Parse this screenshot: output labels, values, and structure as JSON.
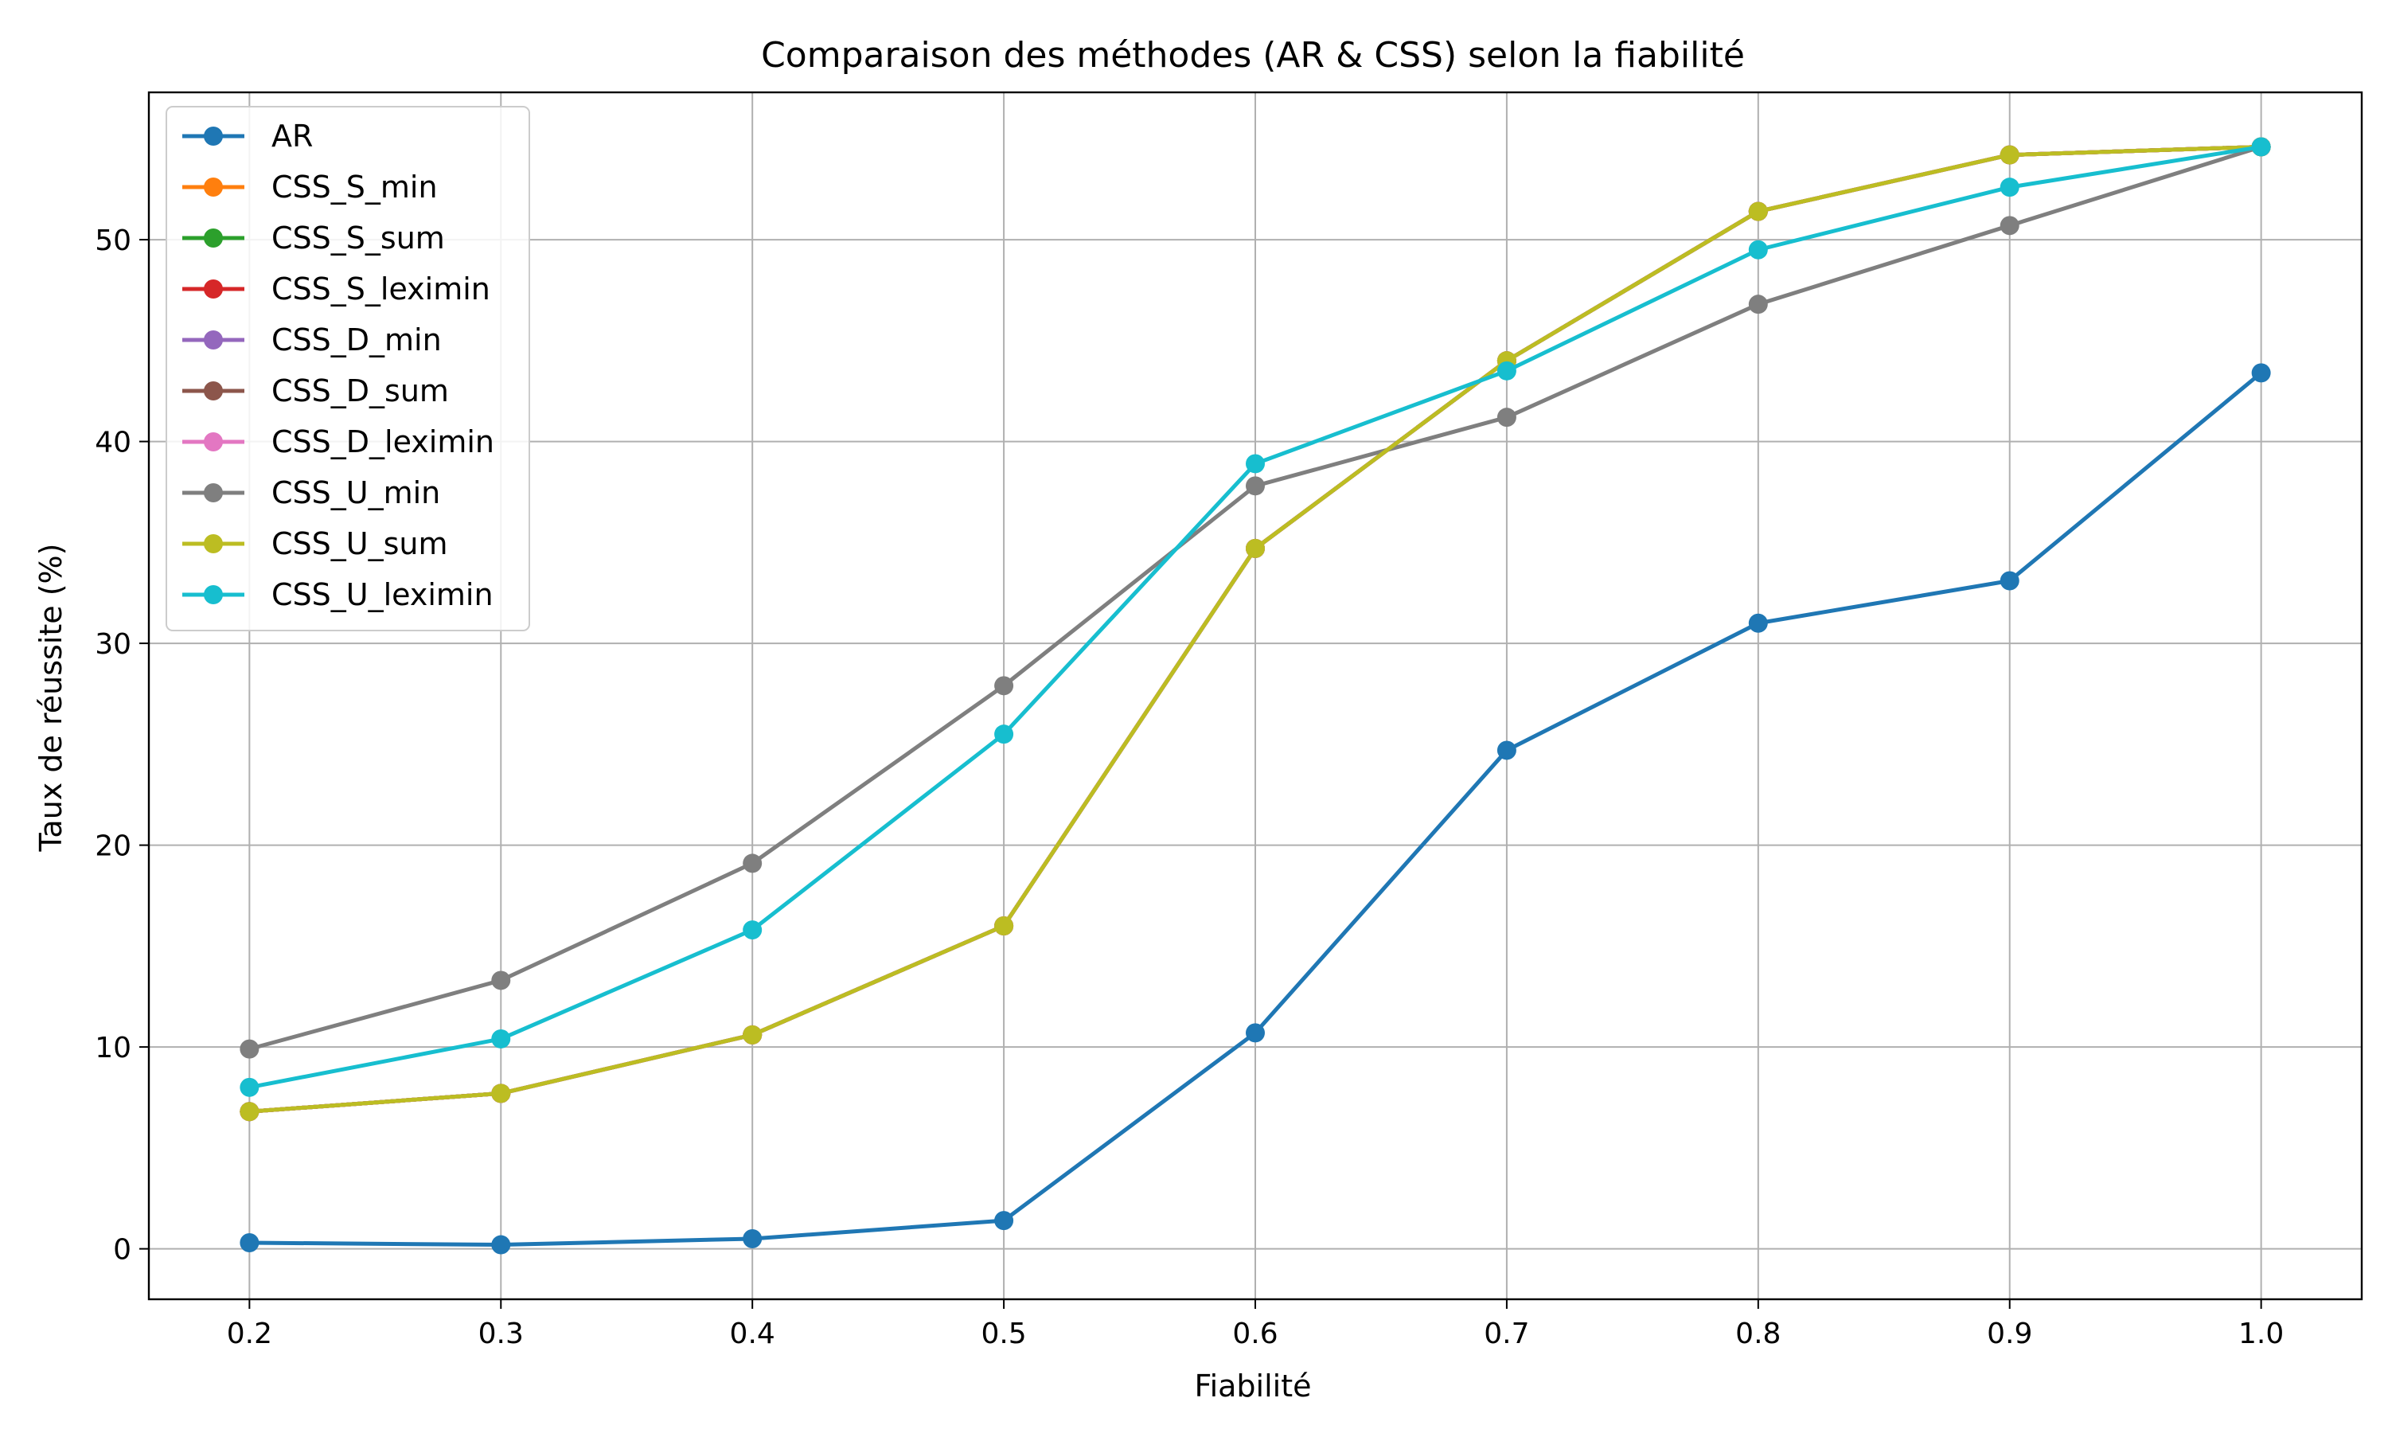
{
  "chart_data": {
    "type": "line",
    "title": "Comparaison des méthodes (AR & CSS) selon la fiabilité",
    "xlabel": "Fiabilité",
    "ylabel": "Taux de réussite (%)",
    "x": [
      0.2,
      0.3,
      0.4,
      0.5,
      0.6,
      0.7,
      0.8,
      0.9,
      1.0
    ],
    "xticks": [
      "0.2",
      "0.3",
      "0.4",
      "0.5",
      "0.6",
      "0.7",
      "0.8",
      "0.9",
      "1.0"
    ],
    "yticks": [
      "0",
      "10",
      "20",
      "30",
      "40",
      "50"
    ],
    "xlim": [
      0.16,
      1.04
    ],
    "ylim": [
      -2.5,
      57.3
    ],
    "grid": true,
    "legend_position": "upper-left",
    "series": [
      {
        "name": "AR",
        "color": "#1f77b4",
        "values": [
          0.3,
          0.2,
          0.5,
          1.4,
          10.7,
          24.7,
          31.0,
          33.1,
          43.4
        ]
      },
      {
        "name": "CSS_S_min",
        "color": "#ff7f0e",
        "values": [
          6.8,
          7.7,
          10.6,
          16.0,
          34.7,
          44.0,
          51.4,
          54.2,
          54.6
        ]
      },
      {
        "name": "CSS_S_sum",
        "color": "#2ca02c",
        "values": [
          6.8,
          7.7,
          10.6,
          16.0,
          34.7,
          44.0,
          51.4,
          54.2,
          54.6
        ]
      },
      {
        "name": "CSS_S_leximin",
        "color": "#d62728",
        "values": [
          6.8,
          7.7,
          10.6,
          16.0,
          34.7,
          44.0,
          51.4,
          54.2,
          54.6
        ]
      },
      {
        "name": "CSS_D_min",
        "color": "#9467bd",
        "values": [
          6.8,
          7.7,
          10.6,
          16.0,
          34.7,
          44.0,
          51.4,
          54.2,
          54.6
        ]
      },
      {
        "name": "CSS_D_sum",
        "color": "#8c564b",
        "values": [
          6.8,
          7.7,
          10.6,
          16.0,
          34.7,
          44.0,
          51.4,
          54.2,
          54.6
        ]
      },
      {
        "name": "CSS_D_leximin",
        "color": "#e377c2",
        "values": [
          6.8,
          7.7,
          10.6,
          16.0,
          34.7,
          44.0,
          51.4,
          54.2,
          54.6
        ]
      },
      {
        "name": "CSS_U_min",
        "color": "#7f7f7f",
        "values": [
          9.9,
          13.3,
          19.1,
          27.9,
          37.8,
          41.2,
          46.8,
          50.7,
          54.6
        ]
      },
      {
        "name": "CSS_U_sum",
        "color": "#bcbd22",
        "values": [
          6.8,
          7.7,
          10.6,
          16.0,
          34.7,
          44.0,
          51.4,
          54.2,
          54.6
        ]
      },
      {
        "name": "CSS_U_leximin",
        "color": "#17becf",
        "values": [
          8.0,
          10.4,
          15.8,
          25.5,
          38.9,
          43.5,
          49.5,
          52.6,
          54.6
        ]
      }
    ]
  }
}
